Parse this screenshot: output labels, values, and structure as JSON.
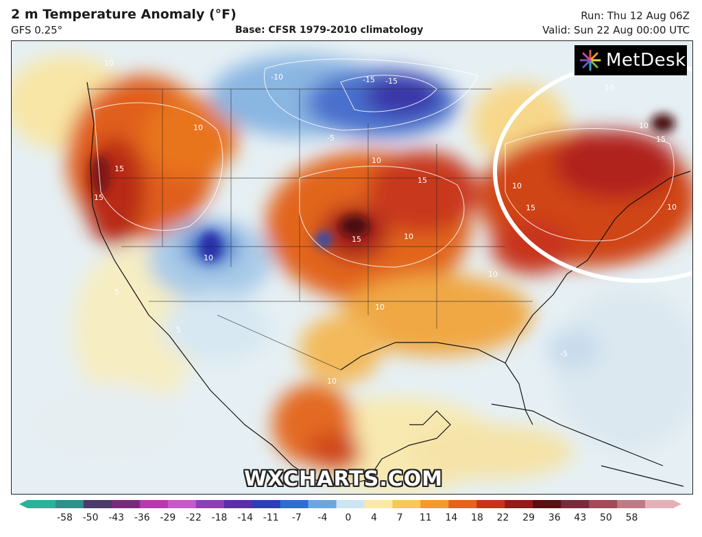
{
  "header": {
    "title": "2 m Temperature Anomaly (°F)",
    "model": "GFS 0.25°",
    "base": "Base: CFSR 1979-2010 climatology",
    "run": "Run: Thu 12 Aug 06Z",
    "valid": "Valid: Sun 22 Aug 00:00 UTC"
  },
  "logo": {
    "text": "MetDesk"
  },
  "watermark": "WXCHARTS.COM",
  "colorbar": {
    "ticks": [
      "-58",
      "-50",
      "-43",
      "-36",
      "-29",
      "-22",
      "-18",
      "-14",
      "-11",
      "-7",
      "-4",
      "0",
      "4",
      "7",
      "11",
      "14",
      "18",
      "22",
      "29",
      "36",
      "43",
      "50",
      "58"
    ],
    "colors": [
      "#2ab29a",
      "#2f8f8a",
      "#4b3a6a",
      "#7a2a7a",
      "#b43ab0",
      "#c35ac8",
      "#8c3fb0",
      "#5a2ea8",
      "#2c3fb8",
      "#2e6ed0",
      "#6aa7e0",
      "#cde4f2",
      "#fbe8a8",
      "#f6c85a",
      "#f29a2e",
      "#e6621a",
      "#c8321a",
      "#951a1a",
      "#5a1010",
      "#7a2a3a",
      "#a04a5a",
      "#c07a86",
      "#e4b0b8"
    ]
  },
  "contour_labels": [
    "10",
    "15",
    "-10",
    "-15",
    "-5",
    "5"
  ],
  "colors": {
    "highlight_circle": "#ffffff",
    "frame": "#222222"
  }
}
